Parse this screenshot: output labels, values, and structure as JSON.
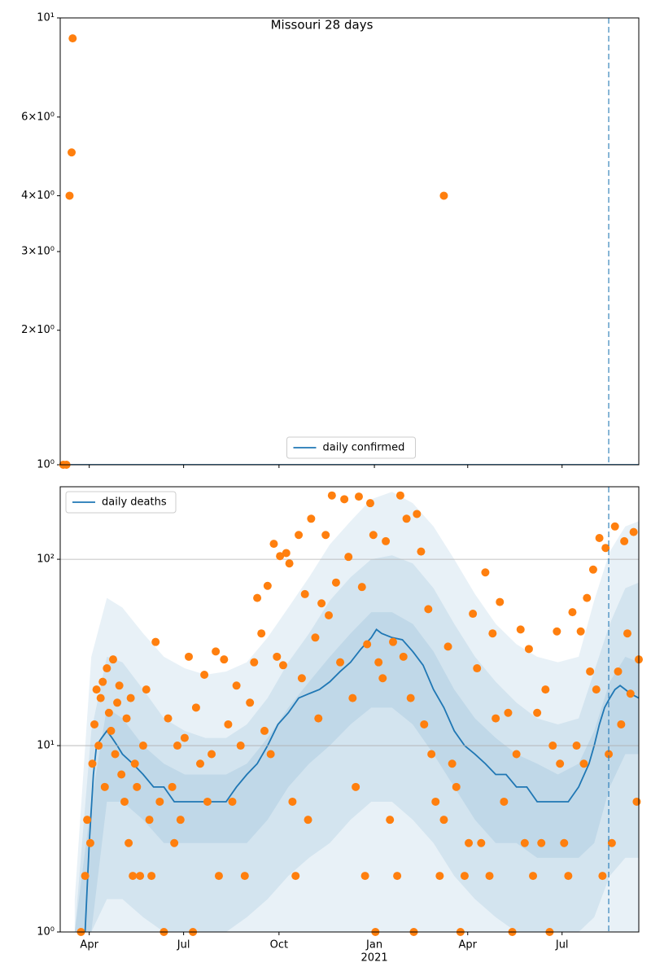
{
  "chart_data": [
    {
      "type": "line",
      "title": "Missouri 28 days",
      "xlim": [
        0,
        558
      ],
      "ylim": [
        1,
        10
      ],
      "log_y": true,
      "yticks": [
        {
          "value": 1,
          "label": "10⁰"
        },
        {
          "value": 2,
          "label": "2×10⁰"
        },
        {
          "value": 3,
          "label": "3×10⁰"
        },
        {
          "value": 4,
          "label": "4×10⁰"
        },
        {
          "value": 6,
          "label": "6×10⁰"
        },
        {
          "value": 10,
          "label": "10¹"
        }
      ],
      "vline": 529,
      "legend": "lower center",
      "series": [
        {
          "name": "daily confirmed",
          "color": "#1f77b4",
          "x": [
            0,
            558
          ],
          "values": [
            1,
            1
          ]
        }
      ],
      "points": {
        "color": "#ff7f0e",
        "x": [
          3,
          6,
          9,
          11,
          12,
          370
        ],
        "values": [
          1,
          1,
          4,
          5,
          9,
          4
        ]
      }
    },
    {
      "type": "line",
      "xlim": [
        0,
        558
      ],
      "ylim": [
        1,
        245
      ],
      "log_y": true,
      "grid": true,
      "yticks": [
        {
          "value": 1,
          "label": "10⁰"
        },
        {
          "value": 10,
          "label": "10¹"
        },
        {
          "value": 100,
          "label": "10²"
        }
      ],
      "xticks": [
        {
          "value": 28,
          "label": "Apr"
        },
        {
          "value": 119,
          "label": "Jul"
        },
        {
          "value": 211,
          "label": "Oct"
        },
        {
          "value": 303,
          "label": "Jan",
          "sublabel": "2021"
        },
        {
          "value": 393,
          "label": "Apr"
        },
        {
          "value": 484,
          "label": "Jul"
        }
      ],
      "vline": 529,
      "legend": "upper left",
      "bands": [
        {
          "color": "#1f77b4",
          "x": [
            14,
            30,
            45,
            60,
            80,
            100,
            120,
            140,
            160,
            180,
            200,
            220,
            240,
            260,
            280,
            300,
            320,
            340,
            360,
            380,
            400,
            420,
            440,
            460,
            480,
            500,
            515,
            530,
            545,
            558
          ],
          "upper": [
            1.5,
            30,
            62,
            55,
            40,
            30,
            26,
            24,
            25,
            28,
            38,
            55,
            80,
            120,
            160,
            210,
            230,
            200,
            150,
            100,
            65,
            45,
            35,
            30,
            28,
            30,
            60,
            110,
            150,
            160
          ],
          "lower": [
            1,
            1,
            1,
            1,
            1,
            1,
            1,
            1,
            1,
            1,
            1,
            1,
            1,
            1,
            1,
            1,
            1,
            1,
            1,
            1,
            1,
            1,
            1,
            1,
            1,
            1,
            1,
            1,
            1,
            1
          ]
        },
        {
          "color": "#1f77b4",
          "x": [
            14,
            30,
            45,
            60,
            80,
            100,
            120,
            140,
            160,
            180,
            200,
            220,
            240,
            260,
            280,
            300,
            320,
            340,
            360,
            380,
            400,
            420,
            440,
            460,
            480,
            500,
            515,
            530,
            545,
            558
          ],
          "upper": [
            1,
            12,
            30,
            28,
            20,
            14,
            12,
            11,
            11,
            13,
            18,
            28,
            40,
            60,
            80,
            100,
            105,
            95,
            70,
            45,
            30,
            22,
            17,
            14,
            13,
            14,
            25,
            45,
            70,
            75
          ],
          "lower": [
            1,
            1,
            1.5,
            1.5,
            1.2,
            1,
            1,
            1,
            1,
            1.2,
            1.5,
            2,
            2.5,
            3,
            4,
            5,
            5,
            4,
            3,
            2,
            1.5,
            1.2,
            1,
            1,
            1,
            1,
            1.2,
            2,
            2.5,
            2.5
          ]
        },
        {
          "color": "#1f77b4",
          "x": [
            14,
            30,
            45,
            60,
            80,
            100,
            120,
            140,
            160,
            180,
            200,
            220,
            240,
            260,
            280,
            300,
            320,
            340,
            360,
            380,
            400,
            420,
            440,
            460,
            480,
            500,
            515,
            530,
            545,
            558
          ],
          "upper": [
            1,
            5,
            16,
            14,
            10,
            8,
            7,
            7,
            7,
            8,
            11,
            16,
            22,
            30,
            40,
            52,
            52,
            45,
            32,
            20,
            14,
            11,
            9,
            8,
            7,
            8,
            12,
            22,
            30,
            28
          ],
          "lower": [
            1,
            1,
            5,
            5,
            4,
            3,
            3,
            3,
            3,
            3,
            4,
            6,
            8,
            10,
            13,
            16,
            16,
            13,
            9,
            6,
            4,
            3,
            3,
            2.5,
            2.5,
            2.5,
            3,
            6,
            9,
            9
          ]
        }
      ],
      "series": [
        {
          "name": "daily deaths",
          "color": "#1f77b4",
          "x": [
            20,
            24,
            28,
            32,
            35,
            40,
            45,
            50,
            55,
            60,
            70,
            80,
            90,
            100,
            110,
            120,
            130,
            140,
            150,
            160,
            170,
            180,
            190,
            200,
            210,
            220,
            230,
            240,
            250,
            260,
            270,
            280,
            290,
            300,
            305,
            310,
            320,
            330,
            340,
            350,
            360,
            370,
            380,
            390,
            400,
            410,
            420,
            430,
            440,
            450,
            460,
            470,
            480,
            490,
            500,
            510,
            515,
            520,
            525,
            530,
            535,
            540,
            545,
            550,
            558
          ],
          "values": [
            1,
            1,
            3,
            7,
            10,
            11,
            12,
            11,
            10,
            9,
            8,
            7,
            6,
            6,
            5,
            5,
            5,
            5,
            5,
            5,
            6,
            7,
            8,
            10,
            13,
            15,
            18,
            19,
            20,
            22,
            25,
            28,
            33,
            38,
            42,
            40,
            38,
            37,
            32,
            27,
            20,
            16,
            12,
            10,
            9,
            8,
            7,
            7,
            6,
            6,
            5,
            5,
            5,
            5,
            6,
            8,
            10,
            13,
            16,
            18,
            20,
            21,
            20,
            19,
            18
          ]
        }
      ],
      "points": {
        "color": "#ff7f0e",
        "x": [
          20,
          24,
          26,
          29,
          31,
          33,
          35,
          37,
          39,
          41,
          43,
          45,
          47,
          49,
          51,
          53,
          55,
          57,
          59,
          62,
          64,
          66,
          68,
          70,
          72,
          74,
          77,
          80,
          83,
          86,
          88,
          92,
          96,
          100,
          104,
          108,
          110,
          113,
          116,
          120,
          124,
          128,
          131,
          135,
          139,
          142,
          146,
          150,
          153,
          158,
          162,
          166,
          170,
          174,
          178,
          183,
          187,
          190,
          194,
          197,
          200,
          203,
          206,
          209,
          212,
          215,
          218,
          221,
          224,
          227,
          230,
          233,
          236,
          239,
          242,
          246,
          249,
          252,
          256,
          259,
          262,
          266,
          270,
          274,
          278,
          282,
          285,
          288,
          291,
          294,
          296,
          299,
          302,
          304,
          307,
          311,
          314,
          318,
          321,
          325,
          328,
          331,
          334,
          338,
          341,
          344,
          348,
          351,
          355,
          358,
          362,
          366,
          370,
          374,
          378,
          382,
          386,
          390,
          394,
          398,
          402,
          406,
          410,
          414,
          417,
          420,
          424,
          428,
          432,
          436,
          440,
          444,
          448,
          452,
          456,
          460,
          464,
          468,
          472,
          475,
          479,
          482,
          486,
          490,
          494,
          498,
          502,
          505,
          508,
          511,
          514,
          517,
          520,
          523,
          526,
          529,
          532,
          535,
          538,
          541,
          544,
          547,
          550,
          553,
          556,
          558
        ],
        "values": [
          1,
          2,
          4,
          3,
          8,
          13,
          20,
          10,
          18,
          22,
          6,
          26,
          15,
          12,
          29,
          9,
          17,
          21,
          7,
          5,
          14,
          3,
          18,
          2,
          8,
          6,
          2,
          10,
          20,
          4,
          2,
          36,
          5,
          1,
          14,
          6,
          3,
          10,
          4,
          11,
          30,
          1,
          16,
          8,
          24,
          5,
          9,
          32,
          2,
          29,
          13,
          5,
          21,
          10,
          2,
          17,
          28,
          62,
          40,
          12,
          72,
          9,
          121,
          30,
          104,
          27,
          108,
          95,
          5,
          2,
          135,
          23,
          65,
          4,
          165,
          38,
          14,
          58,
          135,
          50,
          220,
          75,
          28,
          210,
          103,
          18,
          6,
          217,
          71,
          2,
          35,
          200,
          135,
          1,
          28,
          23,
          125,
          4,
          36,
          2,
          220,
          30,
          165,
          18,
          1,
          175,
          110,
          13,
          54,
          9,
          5,
          2,
          4,
          34,
          8,
          6,
          1,
          2,
          3,
          51,
          26,
          3,
          85,
          2,
          40,
          14,
          59,
          5,
          15,
          1,
          9,
          42,
          3,
          33,
          2,
          15,
          3,
          20,
          1,
          10,
          41,
          8,
          3,
          2,
          52,
          10,
          41,
          8,
          62,
          25,
          88,
          20,
          130,
          2,
          115,
          9,
          3,
          150,
          25,
          13,
          125,
          40,
          19,
          140,
          5,
          29
        ]
      }
    }
  ]
}
